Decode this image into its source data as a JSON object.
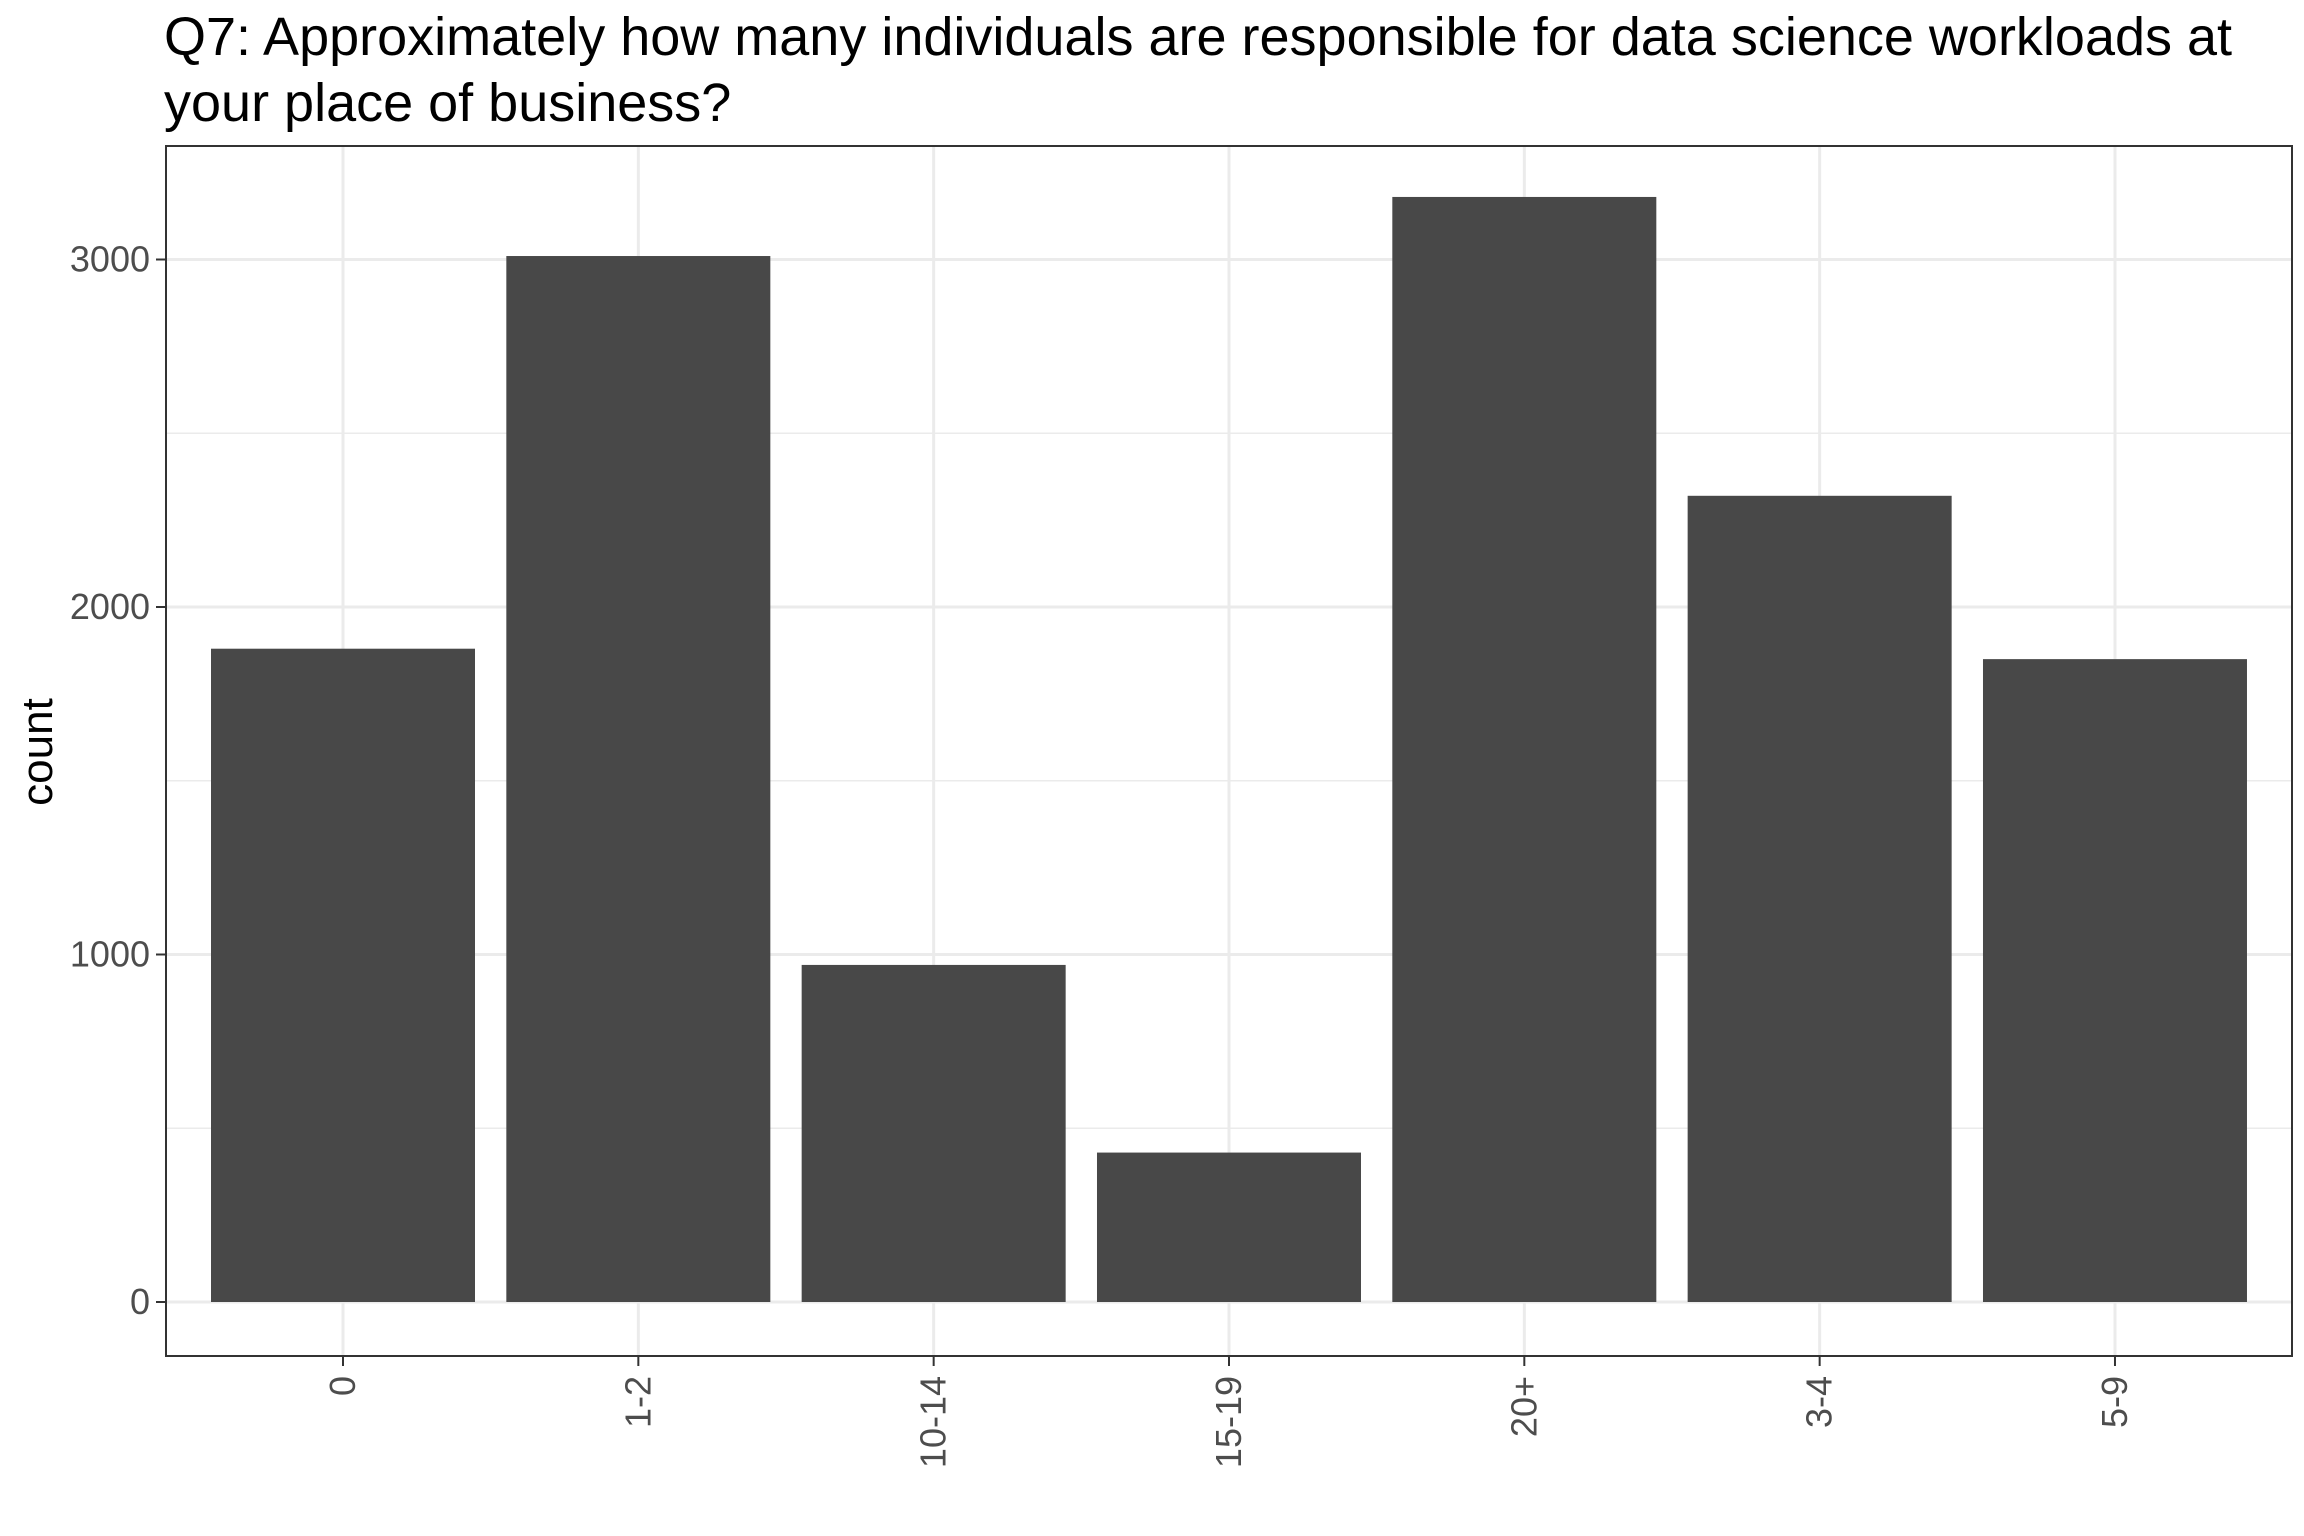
{
  "chart_data": {
    "type": "bar",
    "title": "Q7: Approximately how many individuals are responsible for data science workloads at your place of business?",
    "xlabel": "",
    "ylabel": "count",
    "categories": [
      "0",
      "1-2",
      "10-14",
      "15-19",
      "20+",
      "3-4",
      "5-9"
    ],
    "values": [
      1880,
      3010,
      970,
      430,
      3180,
      2320,
      1850
    ],
    "ylim": [
      0,
      3300
    ],
    "yticks": [
      0,
      1000,
      2000,
      3000
    ],
    "ytick_labels": [
      "0",
      "1000",
      "2000",
      "3000"
    ],
    "grid": true,
    "bar_color": "#484848",
    "grid_color": "#ebebeb",
    "panel_border_color": "#333333"
  }
}
